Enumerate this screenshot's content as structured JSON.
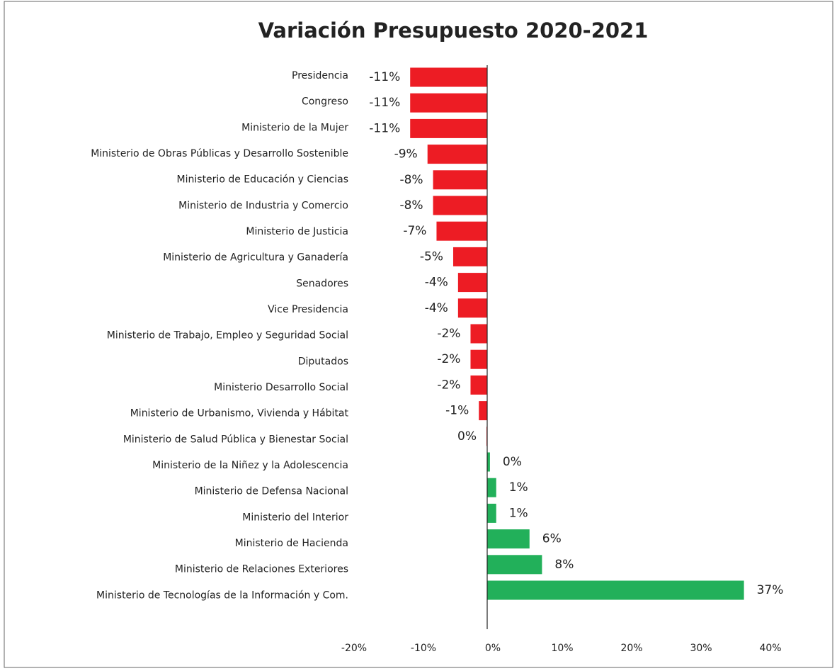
{
  "chart_data": {
    "type": "hbar",
    "title": "Variación Presupuesto 2020-2021",
    "categories": [
      "Presidencia",
      "Congreso",
      "Ministerio de la Mujer",
      "Ministerio de Obras Públicas y Desarrollo Sostenible",
      "Ministerio de Educación y Ciencias",
      "Ministerio de Industria y Comercio",
      "Ministerio de Justicia",
      "Ministerio de Agricultura y Ganadería",
      "Senadores",
      "Vice Presidencia",
      "Ministerio de Trabajo, Empleo y Seguridad Social",
      "Diputados",
      "Ministerio Desarrollo Social",
      "Ministerio de Urbanismo, Vivienda y Hábitat",
      "Ministerio de Salud Pública y Bienestar Social",
      "Ministerio de la Niñez y la Adolescencia",
      "Ministerio de Defensa Nacional",
      "Ministerio del Interior",
      "Ministerio de Hacienda",
      "Ministerio de Relaciones Exteriores",
      "Ministerio de Tecnologías de la Información y Com."
    ],
    "values": [
      -11.1,
      -11.1,
      -11.1,
      -8.6,
      -7.8,
      -7.8,
      -7.3,
      -4.9,
      -4.2,
      -4.2,
      -2.4,
      -2.4,
      -2.4,
      -1.2,
      -0.1,
      0.4,
      1.3,
      1.3,
      6.1,
      7.9,
      37.0
    ],
    "value_labels": [
      "-11%",
      "-11%",
      "-11%",
      "-9%",
      "-8%",
      "-8%",
      "-7%",
      "-5%",
      "-4%",
      "-4%",
      "-2%",
      "-2%",
      "-2%",
      "-1%",
      "0%",
      "0%",
      "1%",
      "1%",
      "6%",
      "8%",
      "37%"
    ],
    "color_negative": "#ed1c24",
    "color_positive": "#22b05a",
    "xlim": [
      -20,
      40
    ],
    "xticks": [
      {
        "value": -20,
        "label": "-20%"
      },
      {
        "value": -10,
        "label": "-10%"
      },
      {
        "value": 0,
        "label": "0%"
      },
      {
        "value": 10,
        "label": "10%"
      },
      {
        "value": 20,
        "label": "20%"
      },
      {
        "value": 30,
        "label": "30%"
      },
      {
        "value": 40,
        "label": "40%"
      }
    ]
  }
}
